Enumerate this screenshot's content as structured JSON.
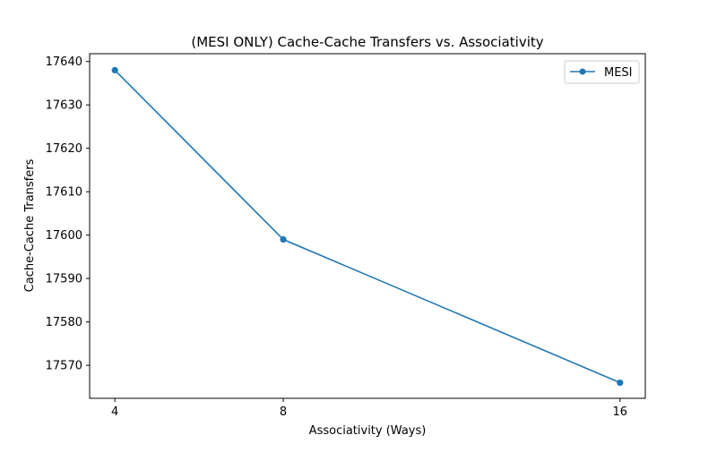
{
  "chart_data": {
    "type": "line",
    "title": "(MESI ONLY) Cache-Cache Transfers vs. Associativity",
    "xlabel": "Associativity (Ways)",
    "ylabel": "Cache-Cache Transfers",
    "x": [
      4,
      8,
      16
    ],
    "x_ticks": [
      4,
      8,
      16
    ],
    "xlim": [
      3.4,
      16.6
    ],
    "ylim": [
      17562.4,
      17641.8
    ],
    "y_ticks": [
      17570,
      17580,
      17590,
      17600,
      17610,
      17620,
      17630,
      17640
    ],
    "grid": false,
    "legend_position": "top-right",
    "series": [
      {
        "name": "MESI",
        "values": [
          17638,
          17599,
          17566
        ],
        "color": "#1f77b4",
        "marker": "circle"
      }
    ]
  }
}
